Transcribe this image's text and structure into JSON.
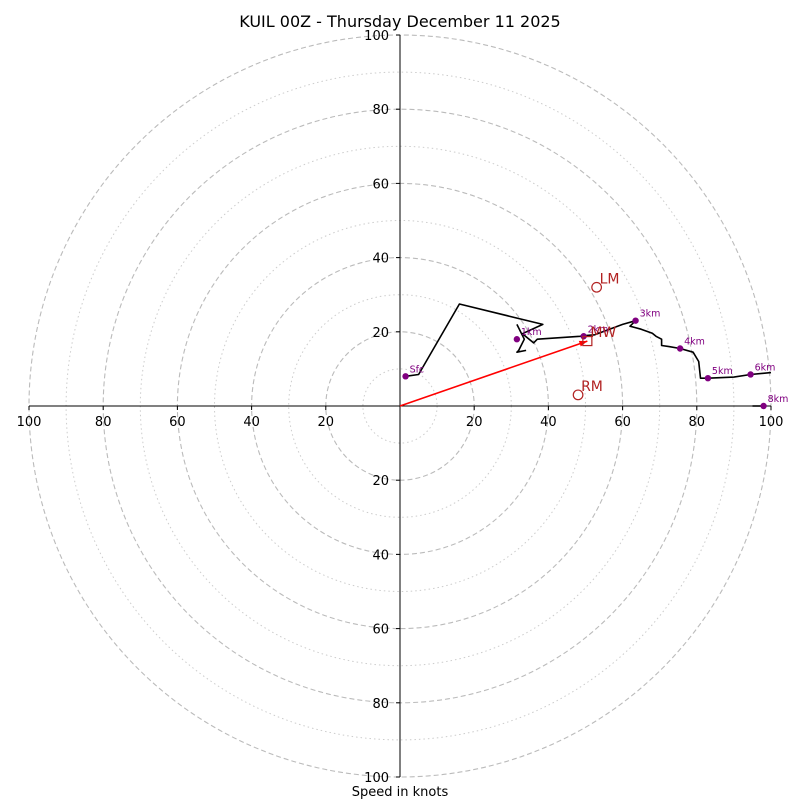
{
  "chart_data": {
    "type": "hodograph",
    "title": "KUIL 00Z - Thursday December 11 2025",
    "xlabel": "Speed in knots",
    "ylabel": "",
    "xlim": [
      -100,
      100
    ],
    "ylim": [
      -100,
      100
    ],
    "ring_major": [
      20,
      40,
      60,
      80,
      100
    ],
    "ring_minor": [
      10,
      30,
      50,
      70,
      90
    ],
    "x_ticks": [
      {
        "value": -100,
        "label": "100"
      },
      {
        "value": -80,
        "label": "80"
      },
      {
        "value": -60,
        "label": "60"
      },
      {
        "value": -40,
        "label": "40"
      },
      {
        "value": -20,
        "label": "20"
      },
      {
        "value": 20,
        "label": "20"
      },
      {
        "value": 40,
        "label": "40"
      },
      {
        "value": 60,
        "label": "60"
      },
      {
        "value": 80,
        "label": "80"
      },
      {
        "value": 100,
        "label": "100"
      }
    ],
    "y_ticks": [
      {
        "value": 100,
        "label": "100"
      },
      {
        "value": 80,
        "label": "80"
      },
      {
        "value": 60,
        "label": "60"
      },
      {
        "value": 40,
        "label": "40"
      },
      {
        "value": 20,
        "label": "20"
      },
      {
        "value": -20,
        "label": "20"
      },
      {
        "value": -40,
        "label": "40"
      },
      {
        "value": -60,
        "label": "60"
      },
      {
        "value": -80,
        "label": "80"
      },
      {
        "value": -100,
        "label": "100"
      }
    ],
    "hodograph_line": {
      "color": "#000000",
      "points": [
        [
          1.5,
          8
        ],
        [
          5,
          8.5
        ],
        [
          16,
          27.5
        ],
        [
          38.5,
          22
        ],
        [
          33,
          19.5
        ],
        [
          36,
          17
        ],
        [
          37,
          18
        ],
        [
          48.5,
          18.8
        ],
        [
          50,
          19
        ],
        [
          52.5,
          19.2
        ],
        [
          56,
          20.5
        ],
        [
          60,
          22
        ],
        [
          63.5,
          23
        ],
        [
          62,
          21.5
        ],
        [
          65,
          20.7
        ],
        [
          68,
          19.6
        ],
        [
          69,
          18.8
        ],
        [
          70.5,
          18
        ],
        [
          70.5,
          16.3
        ],
        [
          72.5,
          16
        ],
        [
          75.5,
          15.5
        ],
        [
          79,
          14.5
        ],
        [
          80.5,
          12
        ],
        [
          81,
          7.5
        ],
        [
          83,
          7.5
        ],
        [
          90,
          7.8
        ],
        [
          94.5,
          8.5
        ],
        [
          100,
          9
        ]
      ],
      "segments_extra": [
        [
          [
            31.5,
            22
          ],
          [
            33.5,
            18
          ],
          [
            32,
            15
          ],
          [
            31.5,
            14.5
          ],
          [
            34,
            15
          ]
        ],
        [
          [
            95,
            0
          ],
          [
            98,
            0
          ]
        ]
      ]
    },
    "height_markers": [
      {
        "label": "Sfc",
        "u": 1.5,
        "v": 8
      },
      {
        "label": "1km",
        "u": 31.5,
        "v": 18
      },
      {
        "label": "2km",
        "u": 49.5,
        "v": 18.8
      },
      {
        "label": "3km",
        "u": 63.5,
        "v": 23
      },
      {
        "label": "4km",
        "u": 75.5,
        "v": 15.5
      },
      {
        "label": "5km",
        "u": 83,
        "v": 7.5
      },
      {
        "label": "6km",
        "u": 94.5,
        "v": 8.5
      },
      {
        "label": "8km",
        "u": 98,
        "v": 0
      }
    ],
    "motion_markers": [
      {
        "label": "LM",
        "u": 53,
        "v": 32,
        "shape": "circle"
      },
      {
        "label": "RM",
        "u": 48,
        "v": 3,
        "shape": "circle"
      },
      {
        "label": "MW",
        "u": 50.5,
        "v": 17.5,
        "shape": "square"
      }
    ],
    "shear_vector": {
      "from": [
        0,
        0
      ],
      "to": [
        50.5,
        17.5
      ],
      "color": "#ff0000"
    },
    "colors": {
      "line": "#000000",
      "height_marker": "#800080",
      "motion_marker": "#b22222",
      "shear_vector": "#ff0000",
      "grid": "#bbbbbb",
      "grid_minor": "#cccccc"
    }
  }
}
